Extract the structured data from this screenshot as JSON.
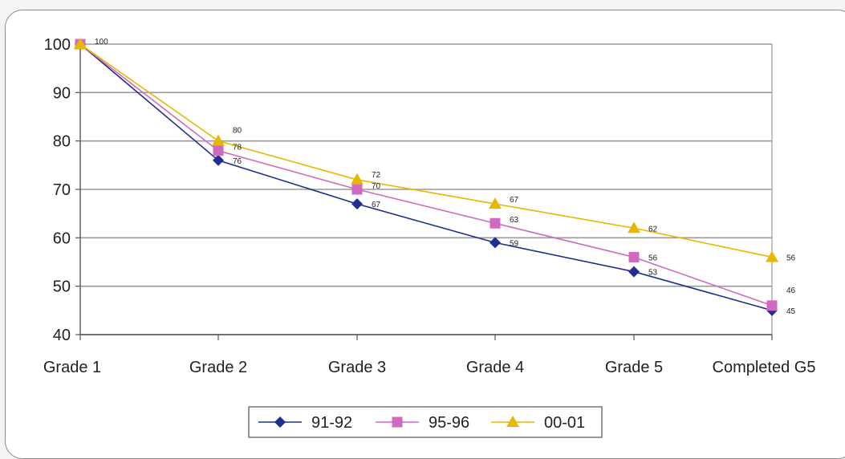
{
  "chart_data": {
    "type": "line",
    "categories": [
      "Grade 1",
      "Grade 2",
      "Grade 3",
      "Grade 4",
      "Grade 5",
      "Completed G5"
    ],
    "series": [
      {
        "name": "91-92",
        "values": [
          100,
          76,
          67,
          59,
          53,
          45
        ],
        "labels": [
          "100",
          "76",
          "67",
          "59",
          "53",
          "45"
        ],
        "color": "#1f2f8f",
        "marker": "diamond"
      },
      {
        "name": "95-96",
        "values": [
          100,
          78,
          70,
          63,
          56,
          46
        ],
        "labels": [
          "",
          "78",
          "70",
          "63",
          "56",
          "46"
        ],
        "color": "#d06ac0",
        "marker": "square"
      },
      {
        "name": "00-01",
        "values": [
          100,
          80,
          72,
          67,
          62,
          56
        ],
        "labels": [
          "",
          "80",
          "72",
          "67",
          "62",
          "56"
        ],
        "color": "#e6b800",
        "marker": "triangle"
      }
    ],
    "yticks": [
      40,
      50,
      60,
      70,
      80,
      90,
      100
    ],
    "ylim": [
      40,
      100
    ],
    "grid": true,
    "legend_position": "bottom"
  }
}
